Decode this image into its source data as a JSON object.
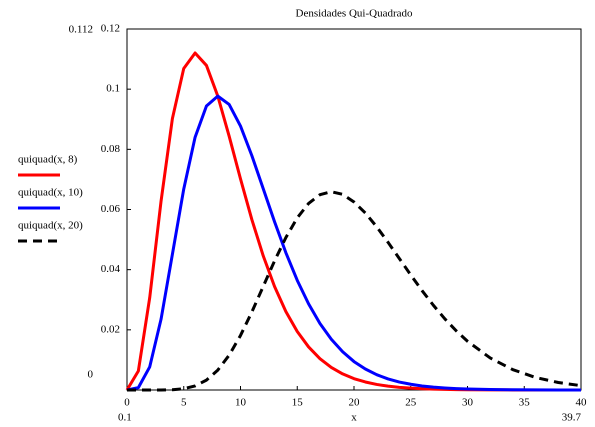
{
  "chart_data": {
    "type": "line",
    "title": "Densidades Qui-Quadrado",
    "x_label": "x",
    "x": [
      0,
      1,
      2,
      3,
      4,
      5,
      6,
      7,
      8,
      9,
      10,
      11,
      12,
      13,
      14,
      15,
      16,
      17,
      18,
      19,
      20,
      21,
      22,
      23,
      24,
      25,
      26,
      27,
      28,
      29,
      30,
      32,
      34,
      36,
      38,
      40
    ],
    "series": [
      {
        "name": "quiquad(x, 8)",
        "color": "#ff0000",
        "dashed": false,
        "values": [
          0,
          0.00632,
          0.03066,
          0.06276,
          0.09022,
          0.10688,
          0.11202,
          0.10789,
          0.09769,
          0.08436,
          0.07019,
          0.05666,
          0.04462,
          0.03441,
          0.02606,
          0.01944,
          0.01431,
          0.01041,
          0.0075,
          0.00535,
          0.00378,
          0.00266,
          0.00185,
          0.00128,
          0.00088,
          0.00061,
          0.00041,
          0.00028,
          0.00019,
          0.00013,
          9e-05,
          4e-05,
          2e-05,
          1e-05,
          0,
          0
        ]
      },
      {
        "name": "quiquad(x, 10)",
        "color": "#0000ff",
        "dashed": false,
        "values": [
          0,
          0.00079,
          0.00766,
          0.02353,
          0.04511,
          0.0668,
          0.08402,
          0.0944,
          0.09769,
          0.09491,
          0.08774,
          0.07791,
          0.06693,
          0.05592,
          0.04561,
          0.03645,
          0.02862,
          0.02212,
          0.01688,
          0.01271,
          0.00945,
          0.00698,
          0.00509,
          0.00368,
          0.00264,
          0.00191,
          0.00133,
          0.00095,
          0.00067,
          0.00047,
          0.00034,
          0.00015,
          7e-05,
          3e-05,
          2e-05,
          1e-05
        ]
      },
      {
        "name": "quiquad(x, 20)",
        "color": "#000000",
        "dashed": true,
        "values": [
          0,
          0,
          0,
          1e-05,
          0.0001,
          0.00043,
          0.00135,
          0.00328,
          0.00662,
          0.01158,
          0.01813,
          0.02593,
          0.03442,
          0.04291,
          0.0507,
          0.05721,
          0.06203,
          0.06491,
          0.06592,
          0.06504,
          0.0625,
          0.05885,
          0.05425,
          0.04909,
          0.04367,
          0.03825,
          0.03302,
          0.02813,
          0.02367,
          0.01969,
          0.0162,
          0.01065,
          0.00676,
          0.00416,
          0.00249,
          0.00145
        ]
      }
    ],
    "xlim": [
      0,
      40
    ],
    "xticks": [
      0,
      5,
      10,
      15,
      20,
      25,
      30,
      35,
      40
    ],
    "ylim": [
      0,
      0.12
    ],
    "yticks": [
      0.02,
      0.04,
      0.06,
      0.08,
      0.1,
      0.12
    ],
    "y_markers": [
      0.112,
      0
    ],
    "x_markers": [
      0.1,
      39.7
    ]
  }
}
